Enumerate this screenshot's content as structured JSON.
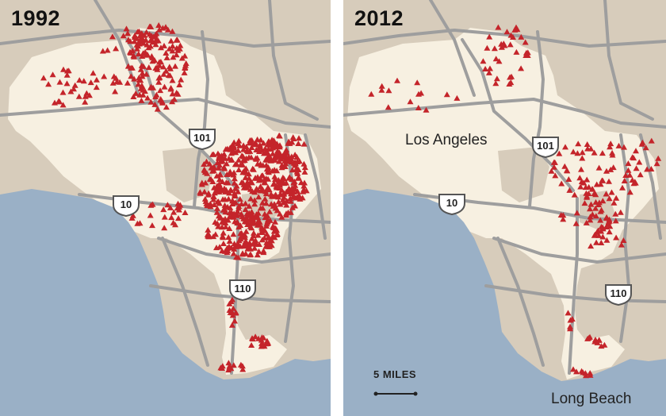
{
  "colors": {
    "land": "#d7ccbb",
    "city": "#f7f0e1",
    "water": "#9ab0c6",
    "road": "#9e9e9e",
    "marker": "#c4242a"
  },
  "panels": [
    {
      "year": "1992",
      "highway_shields": [
        {
          "id": "shield-101",
          "number": "101"
        },
        {
          "id": "shield-10",
          "number": "10"
        },
        {
          "id": "shield-110",
          "number": "110"
        }
      ]
    },
    {
      "year": "2012",
      "city_labels": [
        "Los Angeles",
        "Long Beach"
      ],
      "highway_shields": [
        {
          "id": "shield-101",
          "number": "101"
        },
        {
          "id": "shield-10",
          "number": "10"
        },
        {
          "id": "shield-110",
          "number": "110"
        }
      ],
      "scale_label": "5 MILES"
    }
  ],
  "marker_icon": "triangle-marker-icon"
}
